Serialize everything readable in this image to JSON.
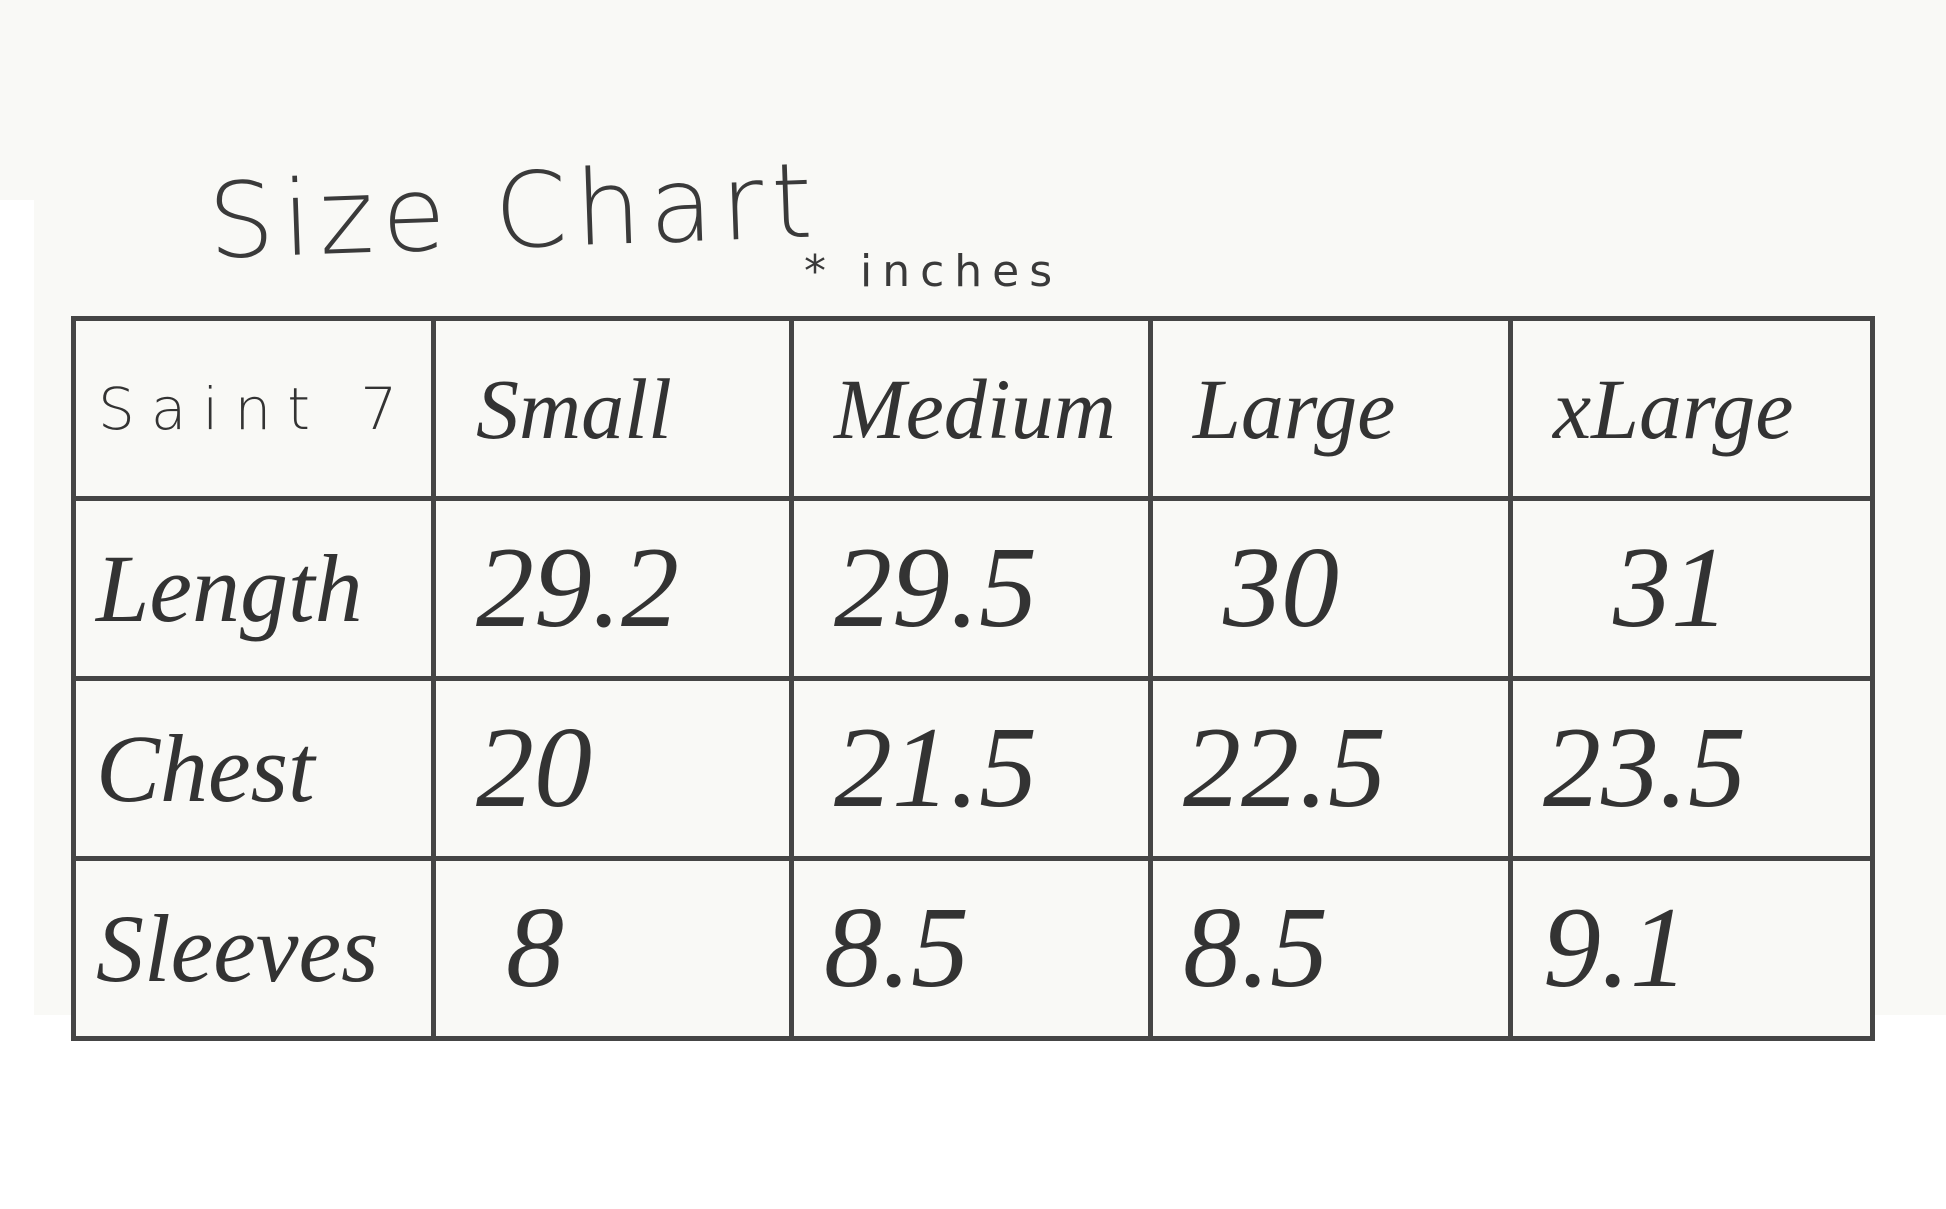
{
  "title": "Size Chart",
  "unit_note": "* inches",
  "table": {
    "corner": "Saint 7",
    "columns": [
      "Small",
      "Medium",
      "Large",
      "xLarge"
    ],
    "rows": [
      {
        "label": "Length",
        "values": [
          "29.2",
          "29.5",
          "30",
          "31"
        ]
      },
      {
        "label": "Chest",
        "values": [
          "20",
          "21.5",
          "22.5",
          "23.5"
        ]
      },
      {
        "label": "Sleeves",
        "values": [
          "8",
          "8.5",
          "8.5",
          "9.1"
        ]
      }
    ]
  }
}
